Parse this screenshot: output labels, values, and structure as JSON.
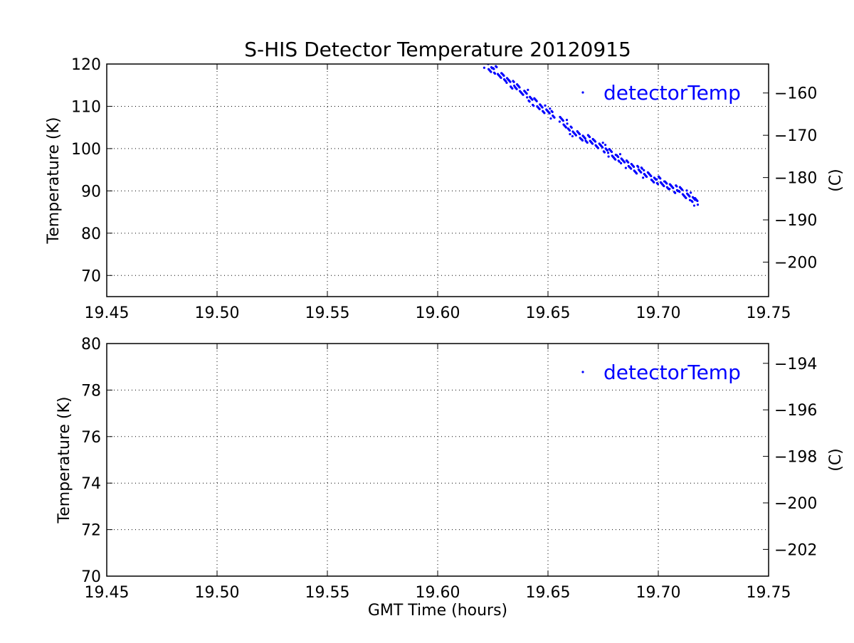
{
  "chart_data": [
    {
      "type": "scatter",
      "title": "S-HIS Detector Temperature 20120915",
      "xlabel": "",
      "ylabel": "Temperature (K)",
      "ylabel_right": "(C)",
      "xlim": [
        19.45,
        19.75
      ],
      "ylim": [
        65,
        120
      ],
      "xticks": [
        "19.45",
        "19.50",
        "19.55",
        "19.60",
        "19.65",
        "19.70",
        "19.75"
      ],
      "yticks": [
        "70",
        "80",
        "90",
        "100",
        "110",
        "120"
      ],
      "yticks_right": [
        "−160",
        "−170",
        "−180",
        "−190",
        "−200"
      ],
      "grid": true,
      "legend": {
        "label": "detectorTemp",
        "placement": "top-right"
      },
      "color": "#0000ff",
      "series": [
        {
          "name": "detectorTemp",
          "x": [
            19.622,
            19.624,
            19.626,
            19.628,
            19.63,
            19.632,
            19.634,
            19.636,
            19.638,
            19.64,
            19.642,
            19.644,
            19.646,
            19.648,
            19.65,
            19.652,
            19.656,
            19.658,
            19.66,
            19.662,
            19.664,
            19.666,
            19.668,
            19.67,
            19.672,
            19.674,
            19.676,
            19.678,
            19.68,
            19.682,
            19.684,
            19.686,
            19.688,
            19.69,
            19.692,
            19.694,
            19.696,
            19.698,
            19.7,
            19.702,
            19.704,
            19.706,
            19.708,
            19.71,
            19.712,
            19.714,
            19.716,
            19.717
          ],
          "y": [
            120.0,
            119.0,
            118.6,
            117.4,
            116.8,
            116.0,
            115.1,
            114.3,
            113.6,
            113.0,
            112.0,
            111.0,
            110.0,
            109.3,
            108.8,
            108.0,
            106.6,
            105.9,
            104.3,
            103.8,
            103.2,
            102.6,
            102.3,
            101.6,
            101.0,
            100.5,
            100.0,
            99.0,
            98.3,
            97.8,
            97.2,
            96.3,
            95.7,
            95.0,
            94.6,
            94.0,
            93.5,
            92.9,
            92.5,
            91.8,
            91.3,
            90.9,
            90.4,
            90.0,
            89.2,
            88.7,
            88.3,
            87.4
          ]
        }
      ]
    },
    {
      "type": "scatter",
      "title": "",
      "xlabel": "GMT Time (hours)",
      "ylabel": "Temperature (K)",
      "ylabel_right": "(C)",
      "xlim": [
        19.45,
        19.75
      ],
      "ylim": [
        70,
        80
      ],
      "xticks": [
        "19.45",
        "19.50",
        "19.55",
        "19.60",
        "19.65",
        "19.70",
        "19.75"
      ],
      "yticks": [
        "70",
        "72",
        "74",
        "76",
        "78",
        "80"
      ],
      "yticks_right": [
        "−194",
        "−196",
        "−198",
        "−200",
        "−202"
      ],
      "grid": true,
      "legend": {
        "label": "detectorTemp",
        "placement": "top-right"
      },
      "color": "#0000ff",
      "series": [
        {
          "name": "detectorTemp",
          "x": [],
          "y": []
        }
      ]
    }
  ]
}
